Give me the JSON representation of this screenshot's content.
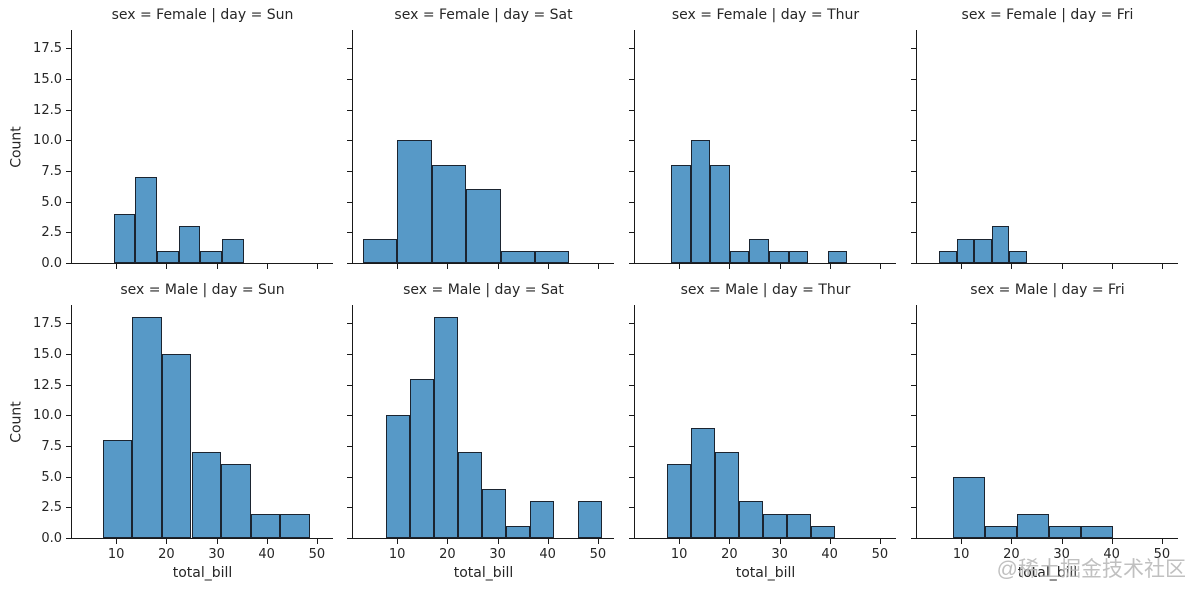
{
  "watermark": "@稀土掘金技术社区",
  "colors": {
    "bar_fill": "#5799c7",
    "bar_edge": "#1b2430",
    "spine": "#1a1a1a",
    "text": "#262626",
    "watermark": "#b9b9b9"
  },
  "chart_data": {
    "type": "bar",
    "kind": "faceted-histogram",
    "grid": false,
    "rows_variable": "sex",
    "cols_variable": "day",
    "xlabel": "total_bill",
    "ylabel": "Count",
    "xlim": [
      1.2,
      53.2
    ],
    "ylim": [
      0,
      19
    ],
    "x_ticks": [
      10,
      20,
      30,
      40,
      50
    ],
    "x_tick_labels": [
      "10",
      "20",
      "30",
      "40",
      "50"
    ],
    "y_ticks": [
      0,
      2.5,
      5,
      7.5,
      10,
      12.5,
      15,
      17.5
    ],
    "y_tick_labels": [
      "0.0",
      "2.5",
      "5.0",
      "7.5",
      "10.0",
      "12.5",
      "15.0",
      "17.5"
    ],
    "facets": [
      {
        "row": "Female",
        "col": "Sun",
        "title": "sex = Female | day = Sun",
        "bin_start": 9.5,
        "bin_width": 4.32,
        "counts": [
          4,
          7,
          1,
          3,
          1,
          2
        ]
      },
      {
        "row": "Female",
        "col": "Sat",
        "title": "sex = Female | day = Sat",
        "bin_start": 3.1,
        "bin_width": 6.87,
        "counts": [
          2,
          10,
          8,
          6,
          1,
          1
        ]
      },
      {
        "row": "Female",
        "col": "Thur",
        "title": "sex = Female | day = Thur",
        "bin_start": 8.4,
        "bin_width": 3.9,
        "counts": [
          8,
          10,
          8,
          1,
          2,
          1,
          1,
          0,
          1
        ]
      },
      {
        "row": "Female",
        "col": "Fri",
        "title": "sex = Female | day = Fri",
        "bin_start": 5.6,
        "bin_width": 3.5,
        "counts": [
          1,
          2,
          2,
          3,
          1
        ]
      },
      {
        "row": "Male",
        "col": "Sun",
        "title": "sex = Male | day = Sun",
        "bin_start": 7.3,
        "bin_width": 5.9,
        "counts": [
          8,
          18,
          15,
          7,
          6,
          2,
          2
        ]
      },
      {
        "row": "Male",
        "col": "Sat",
        "title": "sex = Male | day = Sat",
        "bin_start": 7.7,
        "bin_width": 4.8,
        "counts": [
          10,
          13,
          18,
          7,
          4,
          1,
          3,
          0,
          3
        ]
      },
      {
        "row": "Male",
        "col": "Thur",
        "title": "sex = Male | day = Thur",
        "bin_start": 7.5,
        "bin_width": 4.8,
        "counts": [
          6,
          9,
          7,
          3,
          2,
          2,
          1
        ]
      },
      {
        "row": "Male",
        "col": "Fri",
        "title": "sex = Male | day = Fri",
        "bin_start": 8.3,
        "bin_width": 6.4,
        "counts": [
          5,
          1,
          2,
          1,
          1
        ]
      }
    ]
  }
}
